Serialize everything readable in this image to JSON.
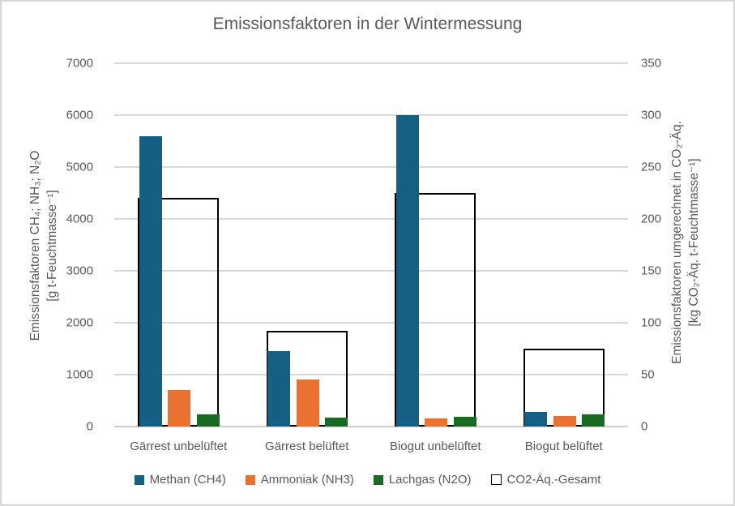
{
  "chart_data": {
    "type": "bar",
    "title": "Emissionsfaktoren in der Wintermessung",
    "categories": [
      "Gärrest unbelüftet",
      "Gärrest belüftet",
      "Biogut unbelüftet",
      "Biogut belüftet"
    ],
    "series": [
      {
        "name": "Methan (CH4)",
        "color": "#156082",
        "axis": "left",
        "values": [
          5600,
          1450,
          6000,
          280
        ]
      },
      {
        "name": "Ammoniak (NH3)",
        "color": "#E97132",
        "axis": "left",
        "values": [
          700,
          900,
          160,
          210
        ]
      },
      {
        "name": "Lachgas (N2O)",
        "color": "#196B24",
        "axis": "left",
        "values": [
          235,
          175,
          195,
          235
        ]
      },
      {
        "name": "CO2-Äq.-Gesamt",
        "color": "#FFFFFF",
        "border_color": "#000000",
        "style": "outline",
        "axis": "right",
        "values": [
          220,
          92,
          225,
          75
        ]
      }
    ],
    "left_axis": {
      "label_line1": "Emissionsfaktoren CH₄; NH₃; N₂O",
      "label_line2": "[g t-Feuchtmasse⁻¹]",
      "min": 0,
      "max": 7000,
      "step": 1000,
      "ticks": [
        0,
        1000,
        2000,
        3000,
        4000,
        5000,
        6000,
        7000
      ]
    },
    "right_axis": {
      "label_line1": "Emissionsfaktoren umgerechnet in CO₂-Äq.",
      "label_line2": "[kg CO₂-Äq. t-Feuchtmasse⁻¹]",
      "min": 0,
      "max": 350,
      "step": 50,
      "ticks": [
        0,
        50,
        100,
        150,
        200,
        250,
        300,
        350
      ]
    },
    "grid": true,
    "legend_position": "bottom"
  },
  "colors": {
    "grid": "#D9D9D9",
    "axis_line": "#CFCFCF",
    "text": "#595959",
    "canvas_border": "#D6D6D6"
  }
}
